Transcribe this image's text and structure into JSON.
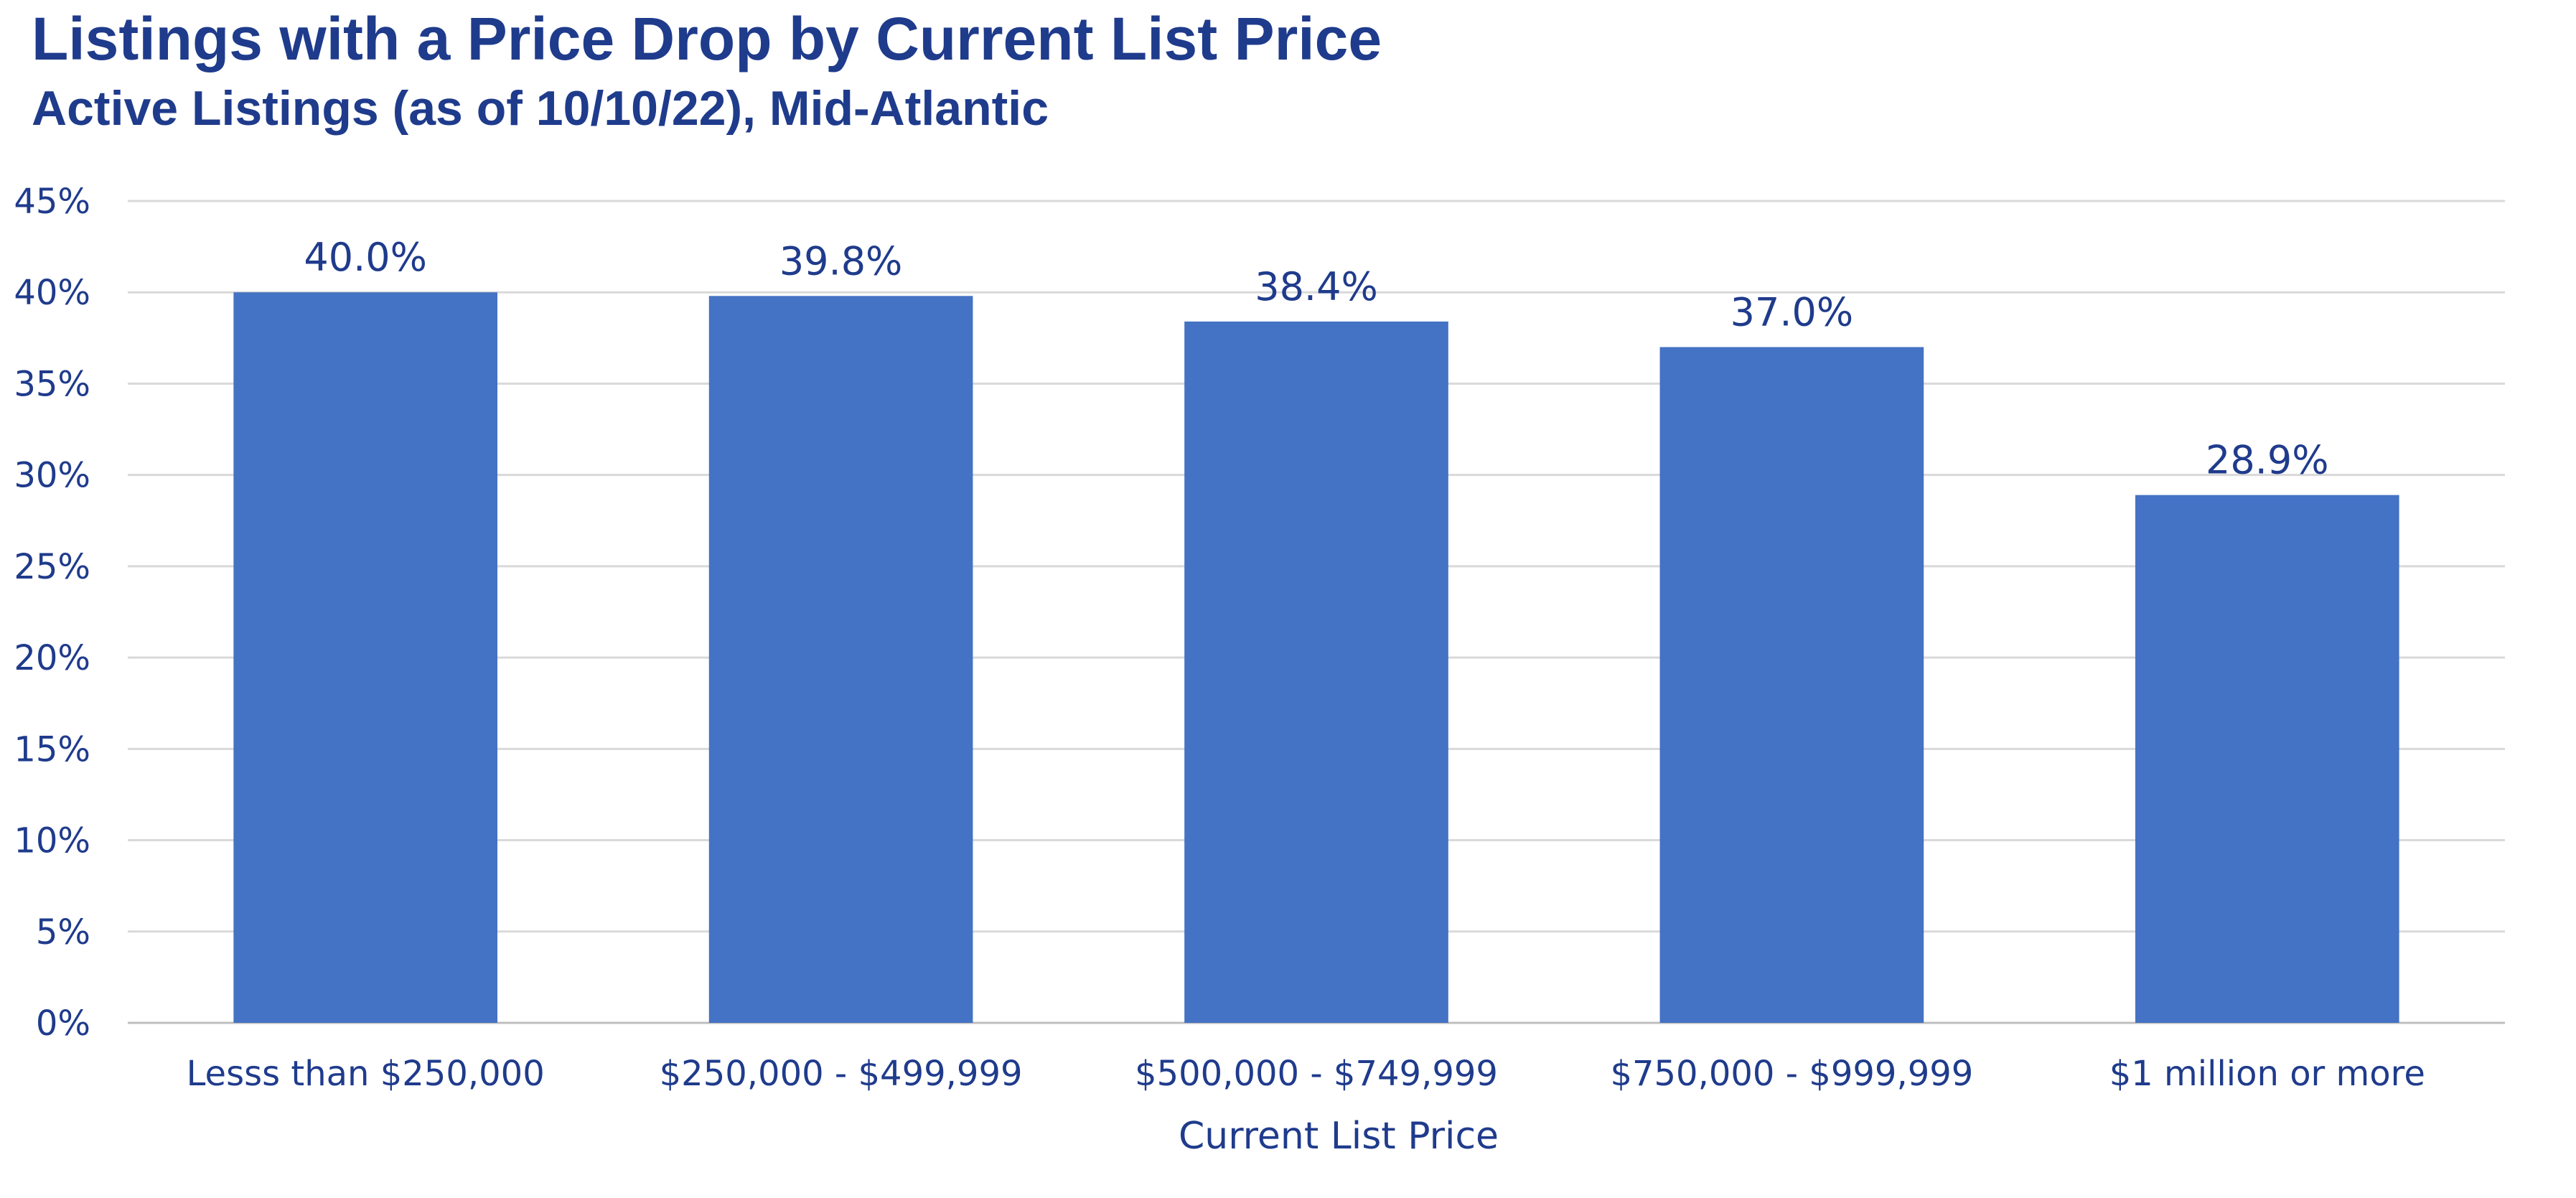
{
  "title": "Listings with a Price Drop by Current List Price",
  "subtitle": "Active Listings (as of 10/10/22), Mid-Atlantic",
  "chart_data": {
    "type": "bar",
    "title": "Listings with a Price Drop by Current List Price",
    "subtitle": "Active Listings (as of 10/10/22), Mid-Atlantic",
    "categories": [
      "Lesss than $250,000",
      "$250,000 - $499,999",
      "$500,000 - $749,999",
      "$750,000 - $999,999",
      "$1 million or more"
    ],
    "values": [
      40.0,
      39.8,
      38.4,
      37.0,
      28.9
    ],
    "value_labels": [
      "40.0%",
      "39.8%",
      "38.4%",
      "37.0%",
      "28.9%"
    ],
    "xlabel": "Current List Price",
    "ylabel": "",
    "ylim": [
      0,
      45
    ],
    "yticks": [
      0,
      5,
      10,
      15,
      20,
      25,
      30,
      35,
      40,
      45
    ],
    "ytick_labels": [
      "0%",
      "5%",
      "10%",
      "15%",
      "20%",
      "25%",
      "30%",
      "35%",
      "40%",
      "45%"
    ],
    "grid": true,
    "legend": "none",
    "bar_color": "#4472c4",
    "text_color": "#1f3b8c",
    "grid_color": "#d9d9d9"
  }
}
